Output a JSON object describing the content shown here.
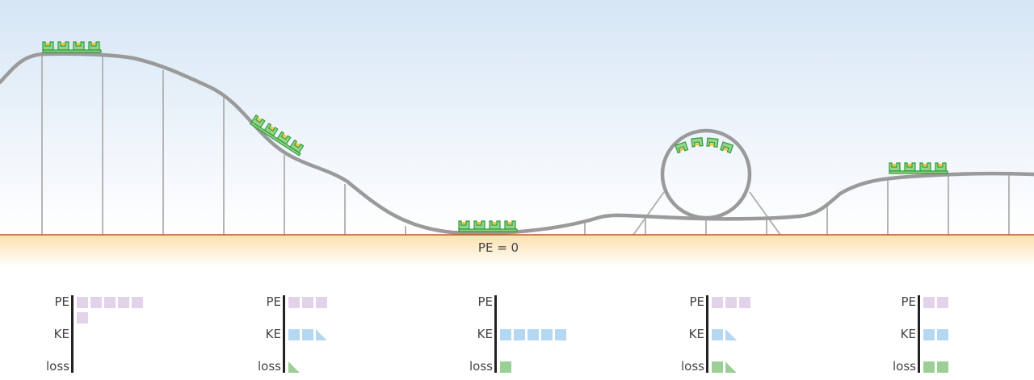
{
  "ground_label": "PE = 0",
  "colors": {
    "sky_top": "#d8e8f6",
    "sky_bottom": "#ffffff",
    "ground_line": "#b55a1e",
    "ground_glow": "#fde3b5",
    "track": "#9a9a9a",
    "support": "#b5b5b5",
    "car_fill": "#93d48a",
    "car_stroke": "#2f9a3a",
    "car_accent": "#f3c43c",
    "pe_block": "#e3d3ea",
    "ke_block": "#b5d8f2",
    "loss_block": "#9ccf96"
  },
  "panels": [
    {
      "pe_label": "PE",
      "ke_label": "KE",
      "loss_label": "loss",
      "pe": 6,
      "ke": 0,
      "loss": 0
    },
    {
      "pe_label": "PE",
      "ke_label": "KE",
      "loss_label": "loss",
      "pe": 3,
      "ke": 2.5,
      "loss": 0.5
    },
    {
      "pe_label": "PE",
      "ke_label": "KE",
      "loss_label": "loss",
      "pe": 0,
      "ke": 5,
      "loss": 1
    },
    {
      "pe_label": "PE",
      "ke_label": "KE",
      "loss_label": "loss",
      "pe": 3,
      "ke": 1.5,
      "loss": 1.5
    },
    {
      "pe_label": "PE",
      "ke_label": "KE",
      "loss_label": "loss",
      "pe": 2,
      "ke": 2,
      "loss": 2
    }
  ]
}
